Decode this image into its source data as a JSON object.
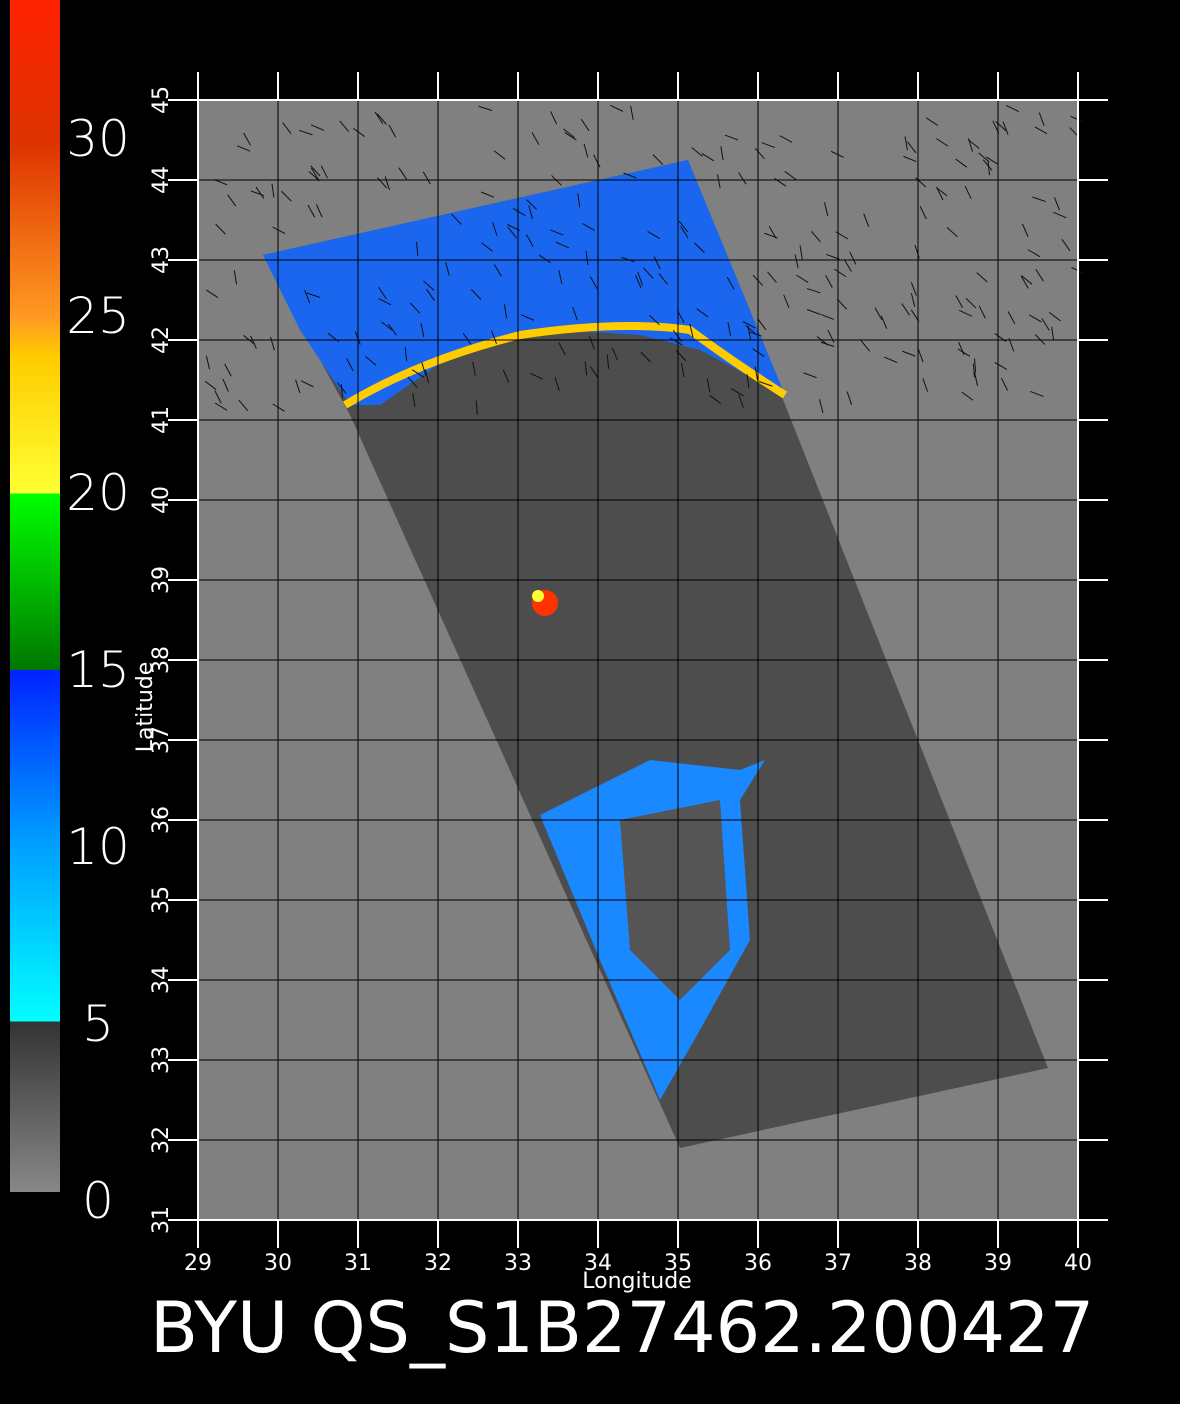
{
  "colorbar": {
    "labels": [
      0,
      5,
      10,
      15,
      20,
      25,
      30
    ]
  },
  "map": {
    "xlabel": "Longitude",
    "ylabel": "Latitude",
    "lon_ticks": [
      29,
      30,
      31,
      32,
      33,
      34,
      35,
      36,
      37,
      38,
      39,
      40
    ],
    "lat_ticks": [
      31,
      32,
      33,
      34,
      35,
      36,
      37,
      38,
      39,
      40,
      41,
      42,
      43,
      44,
      45
    ]
  },
  "caption": "BYU QS_S1B27462.200427"
}
